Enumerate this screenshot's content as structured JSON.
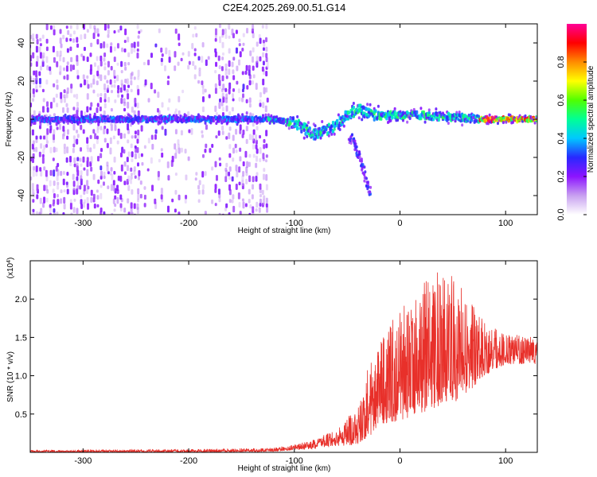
{
  "title": "C2E4.2025.269.00.51.G14",
  "chart_data": [
    {
      "type": "heatmap",
      "xlabel": "Height of straight line (km)",
      "ylabel": "Frequency (Hz)",
      "xlim": [
        -350,
        130
      ],
      "ylim": [
        -50,
        50
      ],
      "x_ticks": [
        -300,
        -200,
        -100,
        0,
        100
      ],
      "x_tick_labels": [
        "-300",
        "-200",
        "-100",
        "0",
        "100"
      ],
      "y_ticks": [
        -40,
        -20,
        0,
        20,
        40
      ],
      "y_tick_labels": [
        "-40",
        "-20",
        "0",
        "20",
        "40"
      ],
      "grid": false,
      "colorbar": {
        "label": "Normalized spectral amplitude",
        "range": [
          0,
          1
        ],
        "ticks": [
          0.0,
          0.2,
          0.4,
          0.6,
          0.8
        ],
        "tick_labels": [
          "0.0",
          "0.2",
          "0.4",
          "0.6",
          "0.8"
        ],
        "colors": [
          "#ffffff",
          "#c8a0f0",
          "#8c14ff",
          "#2828ff",
          "#00c8ff",
          "#00ff96",
          "#50ff00",
          "#ffff00",
          "#ff8c00",
          "#ff0000",
          "#ff0096"
        ]
      },
      "noise_region_x": [
        -350,
        -125
      ],
      "ridge": [
        {
          "x": -345,
          "f": 0
        },
        {
          "x": -300,
          "f": 0
        },
        {
          "x": -250,
          "f": 0
        },
        {
          "x": -200,
          "f": 0
        },
        {
          "x": -150,
          "f": 0
        },
        {
          "x": -120,
          "f": 0
        },
        {
          "x": -100,
          "f": -2
        },
        {
          "x": -90,
          "f": -5
        },
        {
          "x": -80,
          "f": -8
        },
        {
          "x": -70,
          "f": -6
        },
        {
          "x": -60,
          "f": -3
        },
        {
          "x": -50,
          "f": 2
        },
        {
          "x": -40,
          "f": 5
        },
        {
          "x": -30,
          "f": 3
        },
        {
          "x": -20,
          "f": 2
        },
        {
          "x": 0,
          "f": 2
        },
        {
          "x": 20,
          "f": 2
        },
        {
          "x": 50,
          "f": 1
        },
        {
          "x": 80,
          "f": 0
        },
        {
          "x": 110,
          "f": 0
        },
        {
          "x": 128,
          "f": 0
        }
      ],
      "tail": [
        {
          "x": -45,
          "f": -10
        },
        {
          "x": -40,
          "f": -18
        },
        {
          "x": -35,
          "f": -25
        },
        {
          "x": -32,
          "f": -32
        },
        {
          "x": -30,
          "f": -37
        }
      ]
    },
    {
      "type": "line",
      "xlabel": "Height of straight line (km)",
      "ylabel": "SNR (10 * v/v)",
      "y_scale_label": "(x10",
      "y_scale_exp": "4",
      "y_scale_close": ")",
      "xlim": [
        -350,
        130
      ],
      "ylim": [
        0,
        25000
      ],
      "x_ticks": [
        -300,
        -200,
        -100,
        0,
        100
      ],
      "x_tick_labels": [
        "-300",
        "-200",
        "-100",
        "0",
        "100"
      ],
      "y_ticks": [
        5000,
        10000,
        15000,
        20000
      ],
      "y_tick_labels": [
        "0.5",
        "1.0",
        "1.5",
        "2.0"
      ],
      "grid": false,
      "color": "#e8302a",
      "envelope": [
        {
          "x": -350,
          "lo": 0,
          "hi": 300
        },
        {
          "x": -200,
          "lo": 0,
          "hi": 400
        },
        {
          "x": -120,
          "lo": 100,
          "hi": 600
        },
        {
          "x": -100,
          "lo": 300,
          "hi": 1000
        },
        {
          "x": -80,
          "lo": 500,
          "hi": 1800
        },
        {
          "x": -60,
          "lo": 800,
          "hi": 3000
        },
        {
          "x": -40,
          "lo": 1000,
          "hi": 6000
        },
        {
          "x": -30,
          "lo": 2000,
          "hi": 12000
        },
        {
          "x": -20,
          "lo": 3000,
          "hi": 15000
        },
        {
          "x": -10,
          "lo": 4000,
          "hi": 17000
        },
        {
          "x": 0,
          "lo": 4000,
          "hi": 19000
        },
        {
          "x": 20,
          "lo": 5000,
          "hi": 22000
        },
        {
          "x": 40,
          "lo": 6000,
          "hi": 24000
        },
        {
          "x": 60,
          "lo": 7000,
          "hi": 22000
        },
        {
          "x": 80,
          "lo": 10000,
          "hi": 17000
        },
        {
          "x": 100,
          "lo": 11500,
          "hi": 15500
        },
        {
          "x": 128,
          "lo": 11500,
          "hi": 15000
        }
      ]
    }
  ]
}
